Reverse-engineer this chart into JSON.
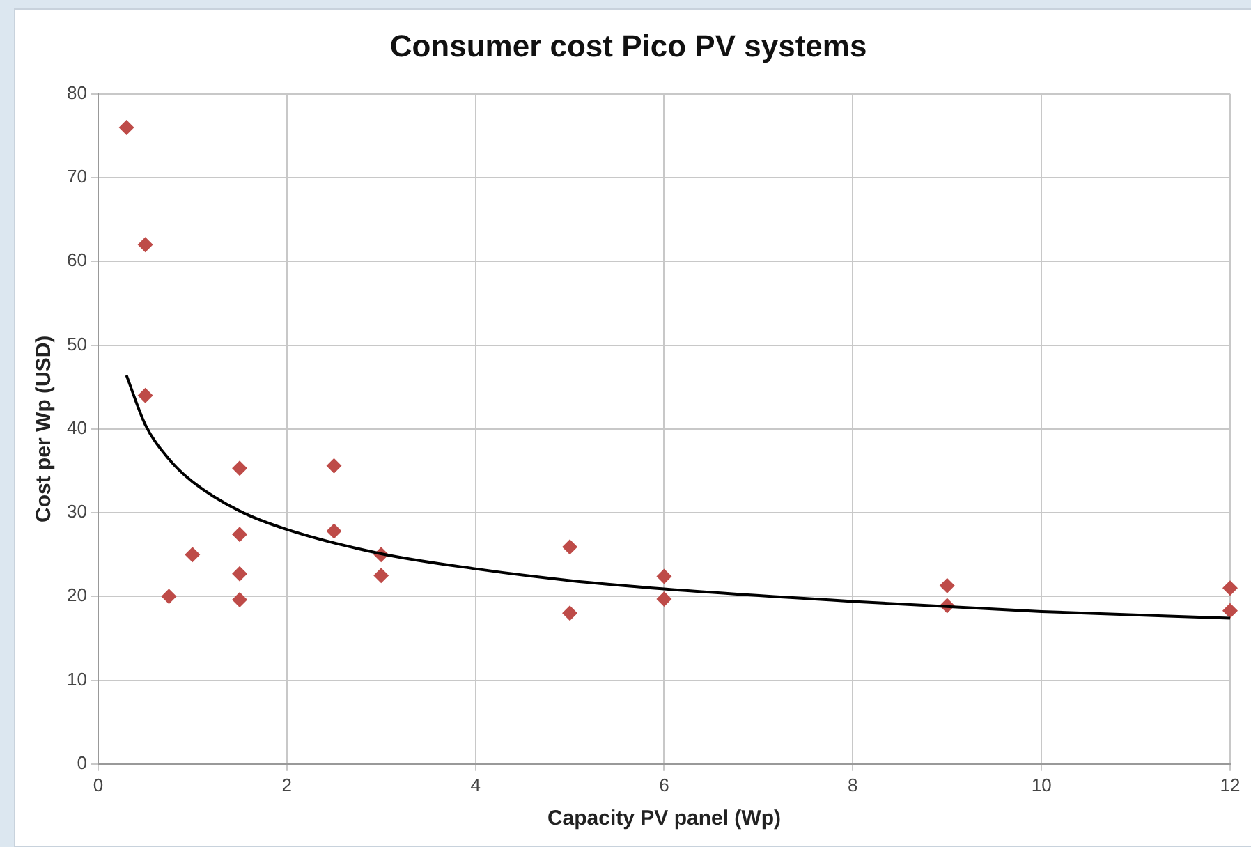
{
  "chart_data": {
    "type": "scatter",
    "title": "Consumer cost Pico PV systems",
    "xlabel": "Capacity PV panel (Wp)",
    "ylabel": "Cost per Wp (USD)",
    "xlim": [
      0,
      12
    ],
    "xticks": [
      0,
      2,
      4,
      6,
      8,
      10,
      12
    ],
    "ylim": [
      0,
      80
    ],
    "yticks": [
      0,
      10,
      20,
      30,
      40,
      50,
      60,
      70,
      80
    ],
    "grid": true,
    "legend": false,
    "series": [
      {
        "color": "#be4b48",
        "marker": "diamond",
        "x": [
          0.3,
          0.5,
          0.5,
          0.75,
          1,
          1.5,
          1.5,
          1.5,
          1.5,
          2.5,
          2.5,
          3,
          3,
          5,
          5,
          6,
          6,
          9,
          9,
          12,
          12
        ],
        "values": [
          76,
          62,
          44,
          20,
          25,
          35.3,
          27.4,
          22.7,
          19.6,
          35.6,
          27.8,
          25,
          22.5,
          25.9,
          18,
          22.4,
          19.7,
          21.3,
          18.9,
          21,
          18.3
        ]
      },
      {
        "type": "line",
        "color": "#000000",
        "marker": "none",
        "x": [
          0.3,
          0.5,
          0.75,
          1,
          1.5,
          2,
          3,
          4,
          5,
          6,
          8,
          10,
          12
        ],
        "values": [
          46.4,
          40.5,
          36.4,
          33.7,
          30.2,
          28,
          25.1,
          23.3,
          21.9,
          20.9,
          19.4,
          18.2,
          17.4
        ]
      }
    ]
  }
}
